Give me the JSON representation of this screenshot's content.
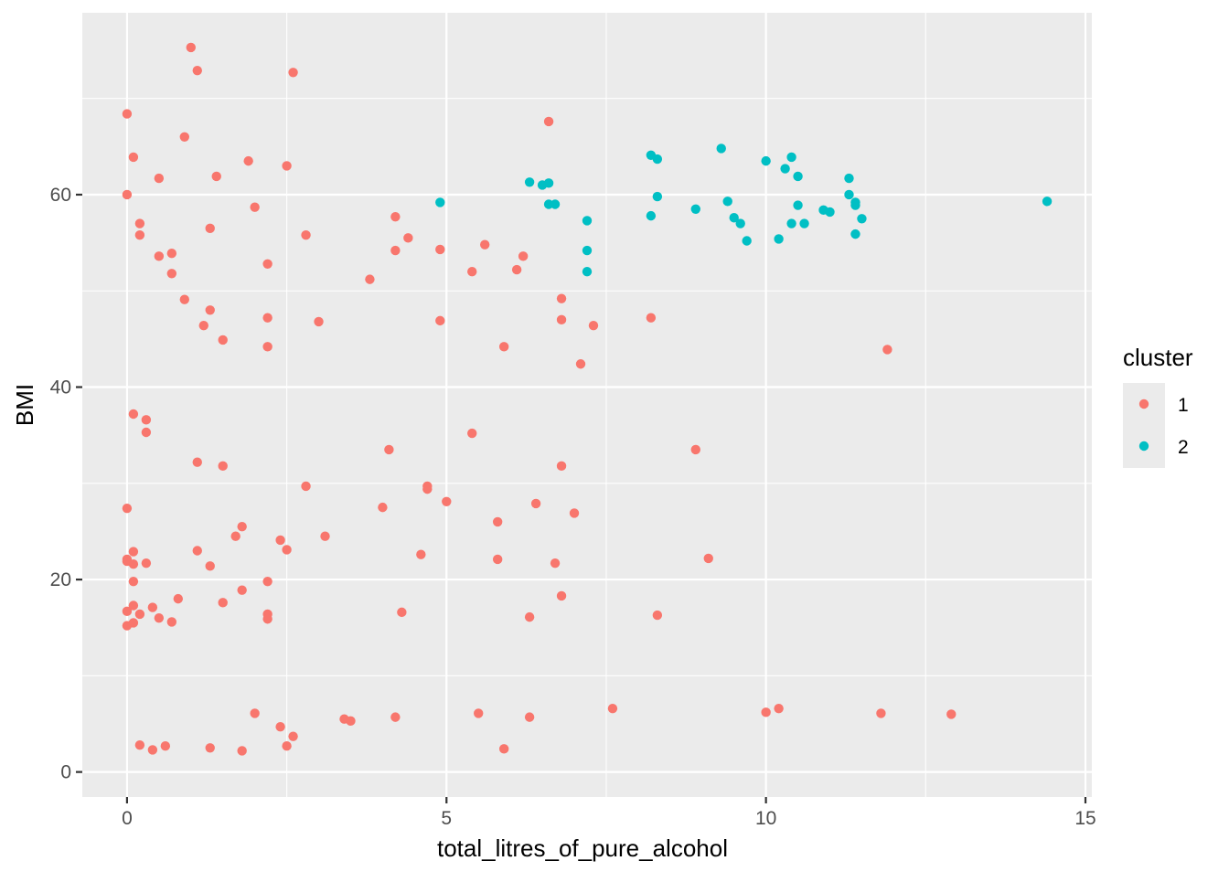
{
  "chart_data": {
    "type": "scatter",
    "title": "",
    "xlabel": "total_litres_of_pure_alcohol",
    "ylabel": "BMI",
    "xlim": [
      -0.7,
      15.1
    ],
    "ylim": [
      -2.6,
      78.9
    ],
    "x_ticks": [
      0,
      5,
      10,
      15
    ],
    "y_ticks": [
      0,
      20,
      40,
      60
    ],
    "x_tick_labels": [
      "0",
      "5",
      "10",
      "15"
    ],
    "y_tick_labels": [
      "0",
      "20",
      "40",
      "60"
    ],
    "grid": true,
    "legend": {
      "title": "cluster",
      "placement": "right",
      "entries": [
        "1",
        "2"
      ]
    },
    "colors": {
      "1": "#F8766D",
      "2": "#00BFC4",
      "panel": "#EBEBEB",
      "grid": "#FFFFFF",
      "axis_text": "#4D4D4D"
    },
    "series": [
      {
        "name": "1",
        "points": [
          [
            0,
            68.4
          ],
          [
            0,
            60.0
          ],
          [
            0.1,
            63.9
          ],
          [
            0.5,
            61.7
          ],
          [
            0.2,
            57.0
          ],
          [
            0.2,
            55.8
          ],
          [
            0.5,
            53.6
          ],
          [
            0.7,
            53.9
          ],
          [
            0.7,
            51.8
          ],
          [
            0.9,
            66.0
          ],
          [
            1.0,
            75.3
          ],
          [
            1.1,
            72.9
          ],
          [
            1.3,
            56.5
          ],
          [
            1.4,
            61.9
          ],
          [
            1.9,
            63.5
          ],
          [
            2.0,
            58.7
          ],
          [
            2.5,
            63.0
          ],
          [
            2.6,
            72.7
          ],
          [
            0.9,
            49.1
          ],
          [
            1.3,
            48.0
          ],
          [
            1.2,
            46.4
          ],
          [
            1.5,
            44.9
          ],
          [
            2.2,
            52.8
          ],
          [
            2.2,
            47.2
          ],
          [
            2.2,
            44.2
          ],
          [
            2.8,
            55.8
          ],
          [
            3.0,
            46.8
          ],
          [
            3.8,
            51.2
          ],
          [
            4.2,
            57.7
          ],
          [
            4.2,
            54.2
          ],
          [
            4.4,
            55.5
          ],
          [
            4.9,
            54.3
          ],
          [
            4.9,
            46.9
          ],
          [
            5.4,
            52.0
          ],
          [
            5.6,
            54.8
          ],
          [
            5.9,
            44.2
          ],
          [
            6.1,
            52.2
          ],
          [
            6.2,
            53.6
          ],
          [
            6.6,
            67.6
          ],
          [
            6.8,
            49.2
          ],
          [
            6.8,
            47.0
          ],
          [
            7.1,
            42.4
          ],
          [
            7.3,
            46.4
          ],
          [
            8.2,
            47.2
          ],
          [
            11.9,
            43.9
          ],
          [
            0.1,
            37.2
          ],
          [
            0.3,
            36.6
          ],
          [
            0.3,
            35.3
          ],
          [
            1.1,
            32.2
          ],
          [
            1.5,
            31.8
          ],
          [
            0,
            27.4
          ],
          [
            0,
            22.1
          ],
          [
            0,
            21.9
          ],
          [
            0.1,
            22.9
          ],
          [
            0.1,
            21.6
          ],
          [
            0.3,
            21.7
          ],
          [
            0.1,
            19.8
          ],
          [
            0.1,
            17.3
          ],
          [
            0,
            16.7
          ],
          [
            0.2,
            16.4
          ],
          [
            0,
            15.2
          ],
          [
            0.1,
            15.5
          ],
          [
            0.4,
            17.1
          ],
          [
            0.5,
            16.0
          ],
          [
            0.7,
            15.6
          ],
          [
            0.8,
            18.0
          ],
          [
            1.1,
            23.0
          ],
          [
            1.3,
            21.4
          ],
          [
            1.5,
            17.6
          ],
          [
            1.7,
            24.5
          ],
          [
            1.8,
            25.5
          ],
          [
            1.8,
            18.9
          ],
          [
            2.2,
            19.8
          ],
          [
            2.2,
            16.4
          ],
          [
            2.2,
            15.9
          ],
          [
            2.4,
            24.1
          ],
          [
            2.5,
            23.1
          ],
          [
            2.8,
            29.7
          ],
          [
            3.1,
            24.5
          ],
          [
            4.0,
            27.5
          ],
          [
            4.1,
            33.5
          ],
          [
            4.3,
            16.6
          ],
          [
            4.6,
            22.6
          ],
          [
            4.7,
            29.7
          ],
          [
            4.7,
            29.4
          ],
          [
            5.0,
            28.1
          ],
          [
            5.4,
            35.2
          ],
          [
            5.8,
            26.0
          ],
          [
            5.8,
            22.1
          ],
          [
            6.3,
            16.1
          ],
          [
            6.4,
            27.9
          ],
          [
            6.7,
            21.7
          ],
          [
            6.8,
            31.8
          ],
          [
            6.8,
            18.3
          ],
          [
            7.0,
            26.9
          ],
          [
            8.3,
            16.3
          ],
          [
            8.9,
            33.5
          ],
          [
            9.1,
            22.2
          ],
          [
            0.2,
            2.8
          ],
          [
            0.4,
            2.3
          ],
          [
            0.6,
            2.7
          ],
          [
            1.3,
            2.5
          ],
          [
            1.8,
            2.2
          ],
          [
            2.0,
            6.1
          ],
          [
            2.4,
            4.7
          ],
          [
            2.5,
            2.7
          ],
          [
            2.6,
            3.7
          ],
          [
            3.4,
            5.5
          ],
          [
            3.5,
            5.3
          ],
          [
            4.2,
            5.7
          ],
          [
            5.5,
            6.1
          ],
          [
            5.9,
            2.4
          ],
          [
            6.3,
            5.7
          ],
          [
            7.6,
            6.6
          ],
          [
            10.0,
            6.2
          ],
          [
            10.2,
            6.6
          ],
          [
            11.8,
            6.1
          ],
          [
            12.9,
            6.0
          ]
        ]
      },
      {
        "name": "2",
        "points": [
          [
            4.9,
            59.2
          ],
          [
            6.3,
            61.3
          ],
          [
            6.5,
            61.0
          ],
          [
            6.6,
            61.2
          ],
          [
            6.6,
            59.0
          ],
          [
            6.7,
            59.0
          ],
          [
            7.2,
            57.3
          ],
          [
            7.2,
            54.2
          ],
          [
            7.2,
            52.0
          ],
          [
            8.2,
            64.1
          ],
          [
            8.3,
            63.7
          ],
          [
            8.2,
            57.8
          ],
          [
            8.3,
            59.8
          ],
          [
            8.9,
            58.5
          ],
          [
            9.3,
            64.8
          ],
          [
            9.4,
            59.3
          ],
          [
            9.5,
            57.6
          ],
          [
            9.6,
            57.0
          ],
          [
            9.7,
            55.2
          ],
          [
            10.0,
            63.5
          ],
          [
            10.2,
            55.4
          ],
          [
            10.3,
            62.7
          ],
          [
            10.4,
            63.9
          ],
          [
            10.5,
            61.9
          ],
          [
            10.4,
            57.0
          ],
          [
            10.5,
            58.9
          ],
          [
            10.6,
            57.0
          ],
          [
            10.9,
            58.4
          ],
          [
            11.0,
            58.2
          ],
          [
            11.3,
            61.7
          ],
          [
            11.3,
            60.0
          ],
          [
            11.4,
            59.2
          ],
          [
            11.4,
            58.9
          ],
          [
            11.5,
            57.5
          ],
          [
            11.4,
            55.9
          ],
          [
            14.4,
            59.3
          ]
        ]
      }
    ]
  }
}
